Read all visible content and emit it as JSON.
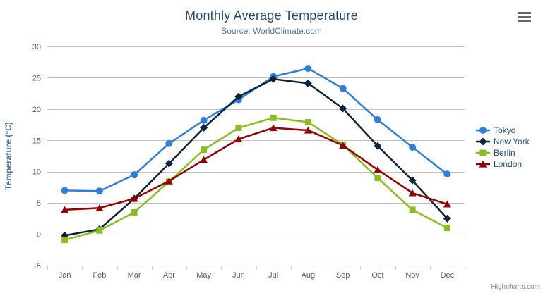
{
  "chart": {
    "title": "Monthly Average Temperature",
    "subtitle": "Source: WorldClimate.com",
    "credits": "Highcharts.com"
  },
  "palette": {
    "title_color": "#274b6d",
    "subtitle_color": "#4d759e",
    "axis_title_color": "#4d759e",
    "axis_label_color": "#606060",
    "gridline_color": "#c0c0c0",
    "axis_line_color": "#c0d0e0",
    "legend_text_color": "#274b6d",
    "credits_color": "#8a8a8a",
    "menu_icon_color": "#666666"
  },
  "chart_data": {
    "type": "line",
    "title": "Monthly Average Temperature",
    "subtitle": "Source: WorldClimate.com",
    "xlabel": "",
    "ylabel": "Temperature (°C)",
    "ylim": [
      -5,
      30
    ],
    "ytick_interval": 5,
    "yticks": [
      -5,
      0,
      5,
      10,
      15,
      20,
      25,
      30
    ],
    "grid": true,
    "legend_position": "right",
    "categories": [
      "Jan",
      "Feb",
      "Mar",
      "Apr",
      "May",
      "Jun",
      "Jul",
      "Aug",
      "Sep",
      "Oct",
      "Nov",
      "Dec"
    ],
    "series": [
      {
        "name": "Tokyo",
        "color": "#2f7ed8",
        "marker": "circle",
        "values": [
          7.0,
          6.9,
          9.5,
          14.5,
          18.2,
          21.5,
          25.2,
          26.5,
          23.3,
          18.3,
          13.9,
          9.6
        ]
      },
      {
        "name": "New York",
        "color": "#0d233a",
        "marker": "diamond",
        "values": [
          -0.2,
          0.8,
          5.7,
          11.3,
          17.0,
          22.0,
          24.8,
          24.1,
          20.1,
          14.1,
          8.6,
          2.5
        ]
      },
      {
        "name": "Berlin",
        "color": "#8bbc21",
        "marker": "square",
        "values": [
          -0.9,
          0.6,
          3.5,
          8.4,
          13.5,
          17.0,
          18.6,
          17.9,
          14.3,
          9.0,
          3.9,
          1.0
        ]
      },
      {
        "name": "London",
        "color": "#910000",
        "marker": "triangle",
        "values": [
          3.9,
          4.2,
          5.7,
          8.5,
          11.9,
          15.2,
          17.0,
          16.6,
          14.2,
          10.3,
          6.6,
          4.8
        ]
      }
    ]
  }
}
